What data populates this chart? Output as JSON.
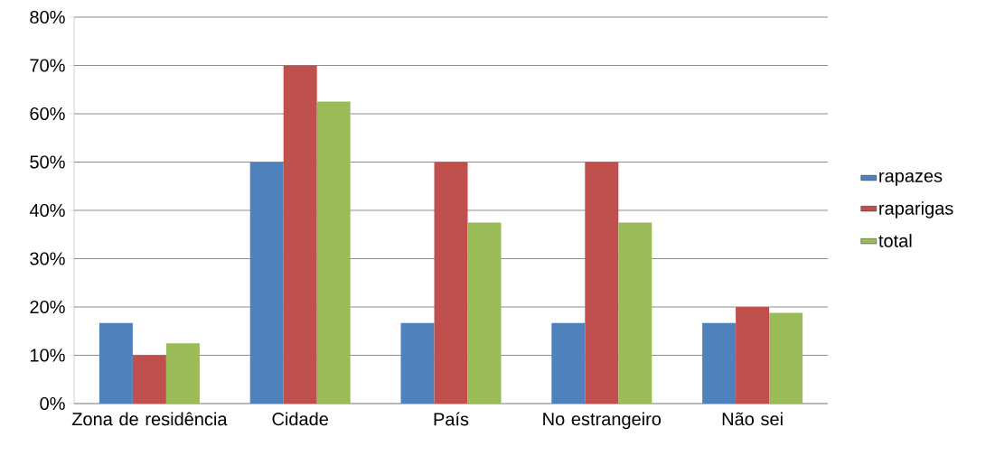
{
  "chart_data": {
    "type": "bar",
    "categories": [
      "Zona de residência",
      "Cidade",
      "País",
      "No estrangeiro",
      "Não sei"
    ],
    "series": [
      {
        "name": "rapazes",
        "color": "#4f81bd",
        "values": [
          16.7,
          50,
          16.7,
          16.7,
          16.7
        ]
      },
      {
        "name": "raparigas",
        "color": "#c0504d",
        "values": [
          10,
          70,
          50,
          50,
          20
        ]
      },
      {
        "name": "total",
        "color": "#9bbb59",
        "values": [
          12.5,
          62.5,
          37.5,
          37.5,
          18.8
        ]
      }
    ],
    "ylim": [
      0,
      80
    ],
    "yticks": [
      {
        "value": 0,
        "label": "0%"
      },
      {
        "value": 10,
        "label": "10%"
      },
      {
        "value": 20,
        "label": "20%"
      },
      {
        "value": 30,
        "label": "30%"
      },
      {
        "value": 40,
        "label": "40%"
      },
      {
        "value": 50,
        "label": "50%"
      },
      {
        "value": 60,
        "label": "60%"
      },
      {
        "value": 70,
        "label": "70%"
      },
      {
        "value": 80,
        "label": "80%"
      }
    ],
    "grid": "y",
    "legend": "right"
  }
}
